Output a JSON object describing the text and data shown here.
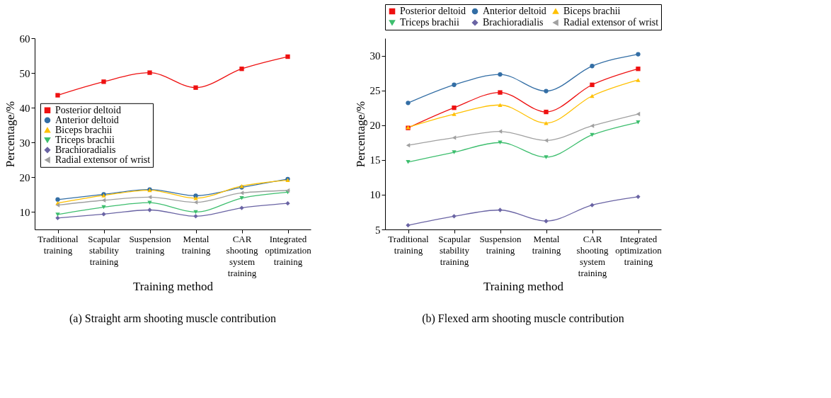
{
  "chart_data": [
    {
      "type": "line",
      "title": "(a) Straight arm shooting muscle contribution",
      "xlabel": "Training method",
      "ylabel": "Percentage/%",
      "categories": [
        "Traditional training",
        "Scapular stability training",
        "Suspension training",
        "Mental training",
        "CAR shooting system training",
        "Integrated optimization training"
      ],
      "ylim": [
        5,
        60
      ],
      "yticks": [
        10,
        20,
        30,
        40,
        50,
        60
      ],
      "grid": false,
      "legend": "left",
      "line_style": "solid",
      "series": [
        {
          "name": "Posterior deltoid",
          "color": "#ee1111",
          "marker": "square",
          "values": [
            43.6,
            47.5,
            50.1,
            45.8,
            51.2,
            54.7
          ]
        },
        {
          "name": "Anterior deltoid",
          "color": "#336ea5",
          "marker": "circle",
          "values": [
            13.6,
            15.1,
            16.5,
            14.7,
            17.1,
            19.5
          ]
        },
        {
          "name": "Biceps brachii",
          "color": "#ffc000",
          "marker": "triangle",
          "values": [
            12.6,
            14.8,
            16.3,
            14.0,
            17.5,
            19.2
          ]
        },
        {
          "name": "Triceps brachii",
          "color": "#3dbe6e",
          "marker": "triangle-down",
          "values": [
            9.3,
            11.4,
            12.7,
            10.0,
            14.0,
            15.7
          ]
        },
        {
          "name": "Brachioradialis",
          "color": "#6a64a4",
          "marker": "diamond",
          "values": [
            8.3,
            9.4,
            10.6,
            8.8,
            11.2,
            12.5
          ]
        },
        {
          "name": "Radial extensor of wrist",
          "color": "#a0a0a0",
          "marker": "triangle-left",
          "values": [
            12.0,
            13.4,
            14.3,
            12.8,
            15.5,
            16.2
          ]
        }
      ]
    },
    {
      "type": "line",
      "title": "(b) Flexed arm shooting muscle contribution",
      "xlabel": "Training method",
      "ylabel": "Percentage/%",
      "categories": [
        "Traditional training",
        "Scapular stability training",
        "Suspension training",
        "Mental training",
        "CAR shooting system training",
        "Integrated optimization training"
      ],
      "ylim": [
        5,
        32.5
      ],
      "yticks": [
        5,
        10,
        15,
        20,
        25,
        30
      ],
      "grid": false,
      "legend": "top",
      "line_style": "solid",
      "series": [
        {
          "name": "Posterior deltoid",
          "color": "#ee1111",
          "marker": "square",
          "values": [
            19.6,
            22.5,
            24.7,
            21.9,
            25.8,
            28.1
          ]
        },
        {
          "name": "Anterior deltoid",
          "color": "#336ea5",
          "marker": "circle",
          "values": [
            23.2,
            25.8,
            27.3,
            24.9,
            28.5,
            30.2
          ]
        },
        {
          "name": "Biceps brachii",
          "color": "#ffc000",
          "marker": "triangle",
          "values": [
            19.7,
            21.6,
            22.9,
            20.3,
            24.2,
            26.5
          ]
        },
        {
          "name": "Triceps brachii",
          "color": "#3dbe6e",
          "marker": "triangle-down",
          "values": [
            14.7,
            16.1,
            17.5,
            15.4,
            18.6,
            20.4
          ]
        },
        {
          "name": "Brachioradialis",
          "color": "#6a64a4",
          "marker": "diamond",
          "values": [
            5.6,
            6.9,
            7.8,
            6.2,
            8.5,
            9.7
          ]
        },
        {
          "name": "Radial extensor of wrist",
          "color": "#a0a0a0",
          "marker": "triangle-left",
          "values": [
            17.1,
            18.2,
            19.1,
            17.8,
            19.9,
            21.6
          ]
        }
      ]
    }
  ]
}
